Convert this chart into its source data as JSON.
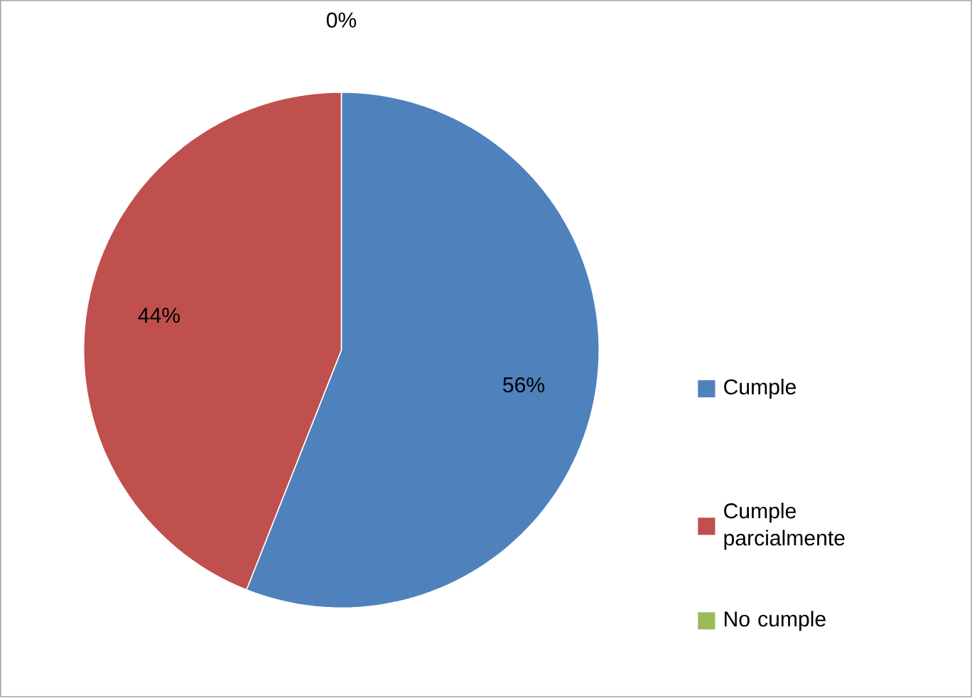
{
  "chart_data": {
    "type": "pie",
    "categories": [
      "Cumple",
      "Cumple parcialmente",
      "No cumple"
    ],
    "values": [
      56,
      44,
      0
    ],
    "colors": [
      "#4f81bd",
      "#c0504d",
      "#9bbb59"
    ],
    "value_labels": [
      "56%",
      "44%",
      "0%"
    ],
    "legend": "right"
  }
}
